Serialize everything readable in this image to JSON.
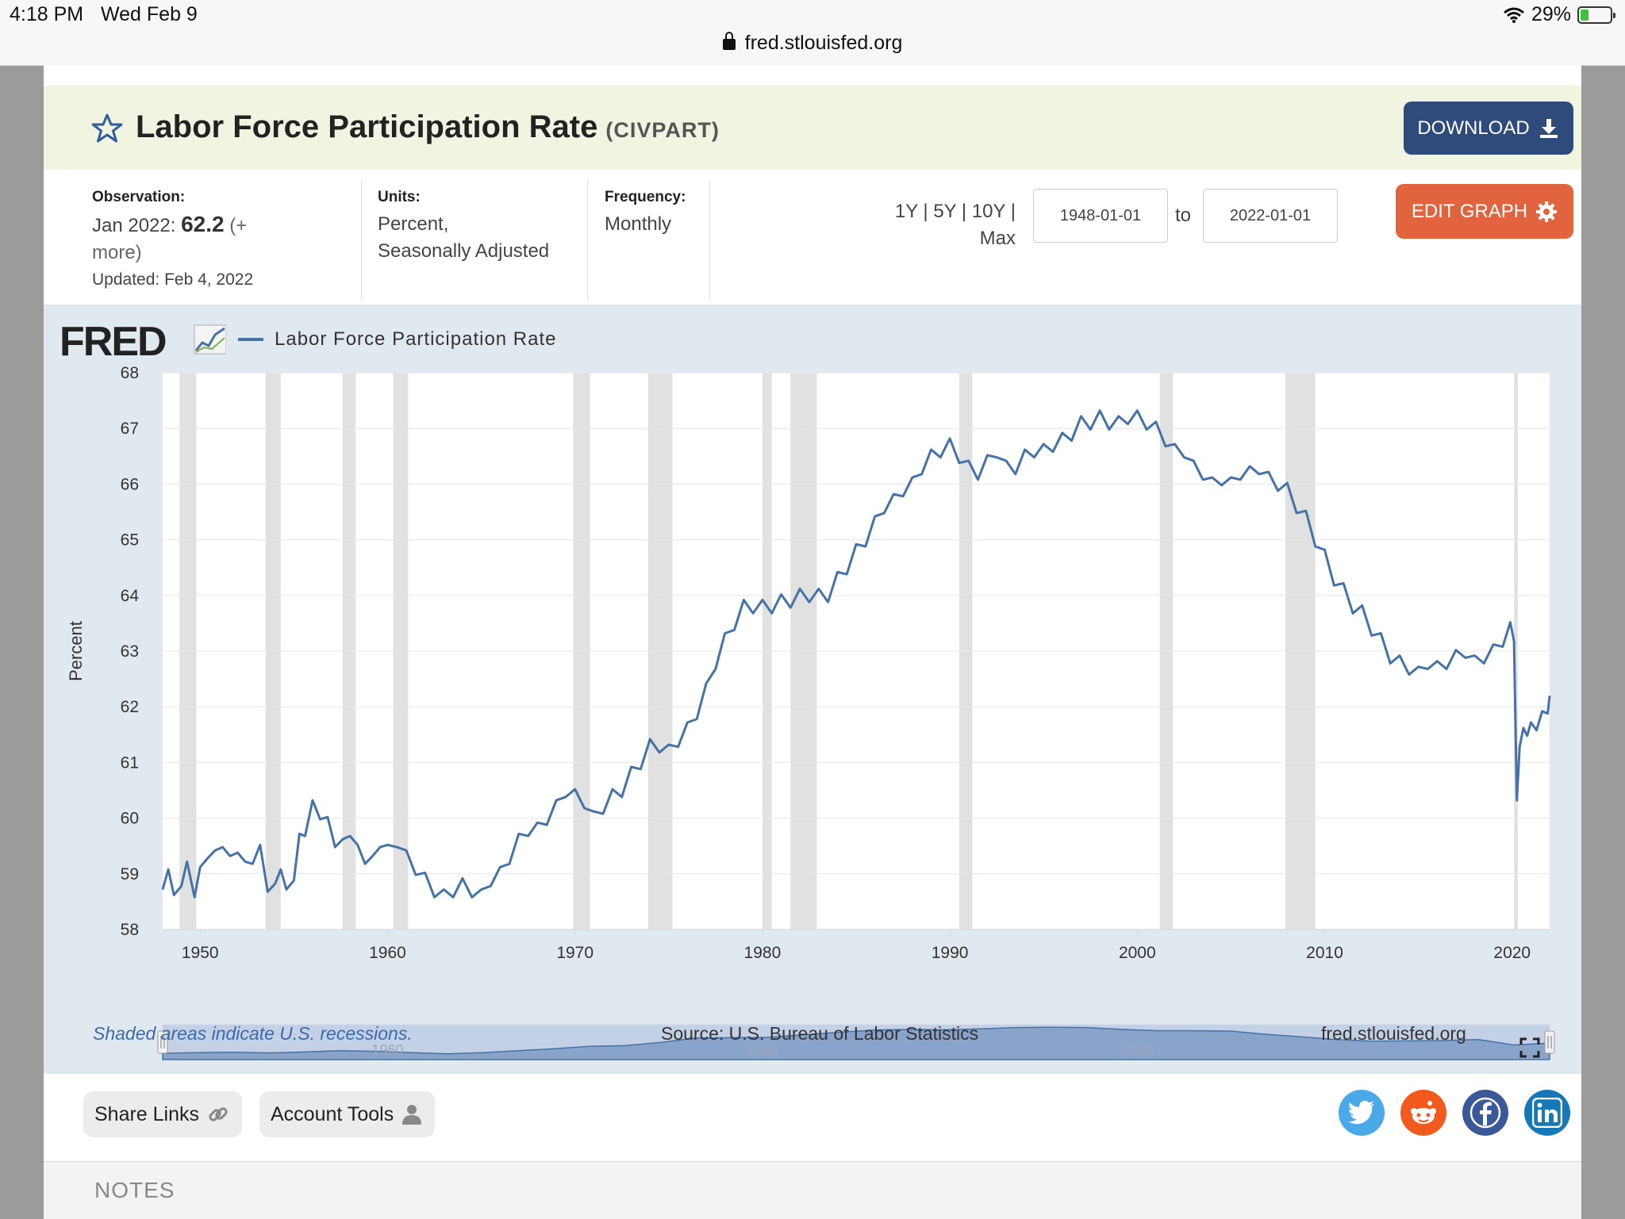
{
  "status": {
    "time": "4:18 PM",
    "date": "Wed Feb 9",
    "url": "fred.stlouisfed.org",
    "battery": "29%",
    "battery_level": 0.29
  },
  "header": {
    "title": "Labor Force Participation Rate",
    "series_id": "(CIVPART)",
    "download_label": "DOWNLOAD"
  },
  "meta": {
    "observation_label": "Observation:",
    "observation_date": "Jan 2022:",
    "observation_value": "62.2",
    "observation_more_1": "(+",
    "observation_more_2": "more)",
    "updated": "Updated: Feb 4, 2022",
    "units_label": "Units:",
    "units_line1": "Percent,",
    "units_line2": "Seasonally Adjusted",
    "frequency_label": "Frequency:",
    "frequency_value": "Monthly"
  },
  "range": {
    "links_line1": "1Y | 5Y | 10Y |",
    "links_line2": "Max",
    "start_date": "1948-01-01",
    "to_label": "to",
    "end_date": "2022-01-01",
    "edit_label": "EDIT GRAPH"
  },
  "chart_data": {
    "type": "line",
    "legend": "Labor Force Participation Rate",
    "ylabel": "Percent",
    "ylim": [
      58,
      68
    ],
    "xlim": [
      1948.0,
      2022.0
    ],
    "yticks": [
      58,
      59,
      60,
      61,
      62,
      63,
      64,
      65,
      66,
      67,
      68
    ],
    "xticks": [
      1950,
      1960,
      1970,
      1980,
      1990,
      2000,
      2010,
      2020
    ],
    "navigator_labels": [
      1960,
      1980,
      2000
    ],
    "grid": true,
    "line_color": "#4572a7",
    "recessions": [
      [
        1948.9,
        1949.8
      ],
      [
        1953.5,
        1954.3
      ],
      [
        1957.6,
        1958.3
      ],
      [
        1960.3,
        1961.1
      ],
      [
        1969.9,
        1970.8
      ],
      [
        1973.9,
        1975.2
      ],
      [
        1980.0,
        1980.5
      ],
      [
        1981.5,
        1982.9
      ],
      [
        1990.5,
        1991.2
      ],
      [
        2001.2,
        2001.9
      ],
      [
        2007.9,
        2009.5
      ],
      [
        2020.1,
        2020.3
      ]
    ],
    "series": [
      {
        "name": "Labor Force Participation Rate",
        "x": [
          1948.0,
          1948.3,
          1948.6,
          1949.0,
          1949.3,
          1949.7,
          1950.0,
          1950.4,
          1950.8,
          1951.2,
          1951.6,
          1952.0,
          1952.4,
          1952.8,
          1953.2,
          1953.6,
          1954.0,
          1954.3,
          1954.6,
          1955.0,
          1955.3,
          1955.6,
          1956.0,
          1956.4,
          1956.8,
          1957.2,
          1957.6,
          1958.0,
          1958.4,
          1958.8,
          1959.2,
          1959.6,
          1960.0,
          1960.5,
          1961.0,
          1961.5,
          1962.0,
          1962.5,
          1963.0,
          1963.5,
          1964.0,
          1964.5,
          1965.0,
          1965.5,
          1966.0,
          1966.5,
          1967.0,
          1967.5,
          1968.0,
          1968.5,
          1969.0,
          1969.5,
          1970.0,
          1970.5,
          1971.0,
          1971.5,
          1972.0,
          1972.5,
          1973.0,
          1973.5,
          1974.0,
          1974.5,
          1975.0,
          1975.5,
          1976.0,
          1976.5,
          1977.0,
          1977.5,
          1978.0,
          1978.5,
          1979.0,
          1979.5,
          1980.0,
          1980.5,
          1981.0,
          1981.5,
          1982.0,
          1982.5,
          1983.0,
          1983.5,
          1984.0,
          1984.5,
          1985.0,
          1985.5,
          1986.0,
          1986.5,
          1987.0,
          1987.5,
          1988.0,
          1988.5,
          1989.0,
          1989.5,
          1990.0,
          1990.5,
          1991.0,
          1991.5,
          1992.0,
          1992.5,
          1993.0,
          1993.5,
          1994.0,
          1994.5,
          1995.0,
          1995.5,
          1996.0,
          1996.5,
          1997.0,
          1997.5,
          1998.0,
          1998.5,
          1999.0,
          1999.5,
          2000.0,
          2000.5,
          2001.0,
          2001.5,
          2002.0,
          2002.5,
          2003.0,
          2003.5,
          2004.0,
          2004.5,
          2005.0,
          2005.5,
          2006.0,
          2006.5,
          2007.0,
          2007.5,
          2008.0,
          2008.5,
          2009.0,
          2009.5,
          2010.0,
          2010.5,
          2011.0,
          2011.5,
          2012.0,
          2012.5,
          2013.0,
          2013.5,
          2014.0,
          2014.5,
          2015.0,
          2015.5,
          2016.0,
          2016.5,
          2017.0,
          2017.5,
          2018.0,
          2018.5,
          2019.0,
          2019.5,
          2019.9,
          2020.1,
          2020.25,
          2020.4,
          2020.6,
          2020.8,
          2021.0,
          2021.3,
          2021.6,
          2021.9,
          2022.0
        ],
        "values": [
          58.6,
          59.2,
          58.5,
          58.9,
          59.1,
          58.7,
          59.0,
          59.4,
          59.3,
          59.6,
          59.2,
          59.5,
          59.1,
          59.3,
          59.4,
          58.8,
          58.7,
          59.2,
          58.6,
          59.0,
          59.6,
          59.8,
          60.2,
          60.1,
          59.9,
          59.6,
          59.5,
          59.8,
          59.4,
          59.3,
          59.2,
          59.6,
          59.4,
          59.6,
          59.3,
          59.1,
          58.9,
          58.7,
          58.6,
          58.7,
          58.8,
          58.7,
          58.6,
          58.9,
          59.0,
          59.3,
          59.6,
          59.8,
          59.8,
          60.0,
          60.2,
          60.5,
          60.4,
          60.3,
          60.0,
          60.2,
          60.4,
          60.5,
          60.8,
          61.0,
          61.3,
          61.3,
          61.2,
          61.4,
          61.6,
          61.9,
          62.3,
          62.8,
          63.2,
          63.5,
          63.8,
          63.8,
          63.8,
          63.8,
          63.9,
          63.9,
          64.0,
          64.0,
          64.0,
          64.0,
          64.3,
          64.5,
          64.8,
          65.0,
          65.3,
          65.6,
          65.7,
          65.9,
          66.0,
          66.3,
          66.5,
          66.6,
          66.7,
          66.5,
          66.3,
          66.2,
          66.4,
          66.6,
          66.3,
          66.3,
          66.5,
          66.6,
          66.6,
          66.7,
          66.8,
          66.9,
          67.1,
          67.1,
          67.2,
          67.1,
          67.1,
          67.2,
          67.2,
          67.1,
          67.0,
          66.8,
          66.6,
          66.6,
          66.3,
          66.2,
          66.0,
          66.1,
          66.0,
          66.2,
          66.2,
          66.3,
          66.1,
          66.0,
          65.9,
          65.6,
          65.4,
          65.0,
          64.7,
          64.3,
          64.1,
          63.8,
          63.7,
          63.4,
          63.2,
          62.9,
          62.8,
          62.7,
          62.6,
          62.8,
          62.7,
          62.8,
          62.9,
          63.0,
          62.8,
          62.9,
          63.0,
          63.2,
          63.4,
          63.3,
          60.2,
          61.4,
          61.5,
          61.6,
          61.6,
          61.7,
          61.8,
          62.0,
          62.2
        ]
      }
    ]
  },
  "navigator": {
    "values": [
      59.0,
      59.2,
      59.3,
      59.1,
      59.4,
      59.8,
      59.6,
      59.2,
      58.8,
      59.2,
      59.8,
      60.4,
      61.2,
      61.4,
      62.4,
      63.8,
      63.9,
      64.0,
      64.8,
      65.6,
      66.3,
      66.5,
      66.4,
      66.7,
      67.1,
      67.2,
      67.1,
      66.5,
      66.1,
      66.1,
      66.0,
      65.0,
      64.2,
      63.3,
      62.8,
      62.9,
      63.0,
      63.3,
      61.6,
      62.2
    ],
    "x_from": 1948.0,
    "x_to": 2022.0
  },
  "footer": {
    "note": "Shaded areas indicate U.S. recessions.",
    "source": "Source: U.S. Bureau of Labor Statistics",
    "site": "fred.stlouisfed.org"
  },
  "share": {
    "share_links": "Share Links",
    "account_tools": "Account Tools"
  },
  "notes": {
    "title": "NOTES"
  }
}
